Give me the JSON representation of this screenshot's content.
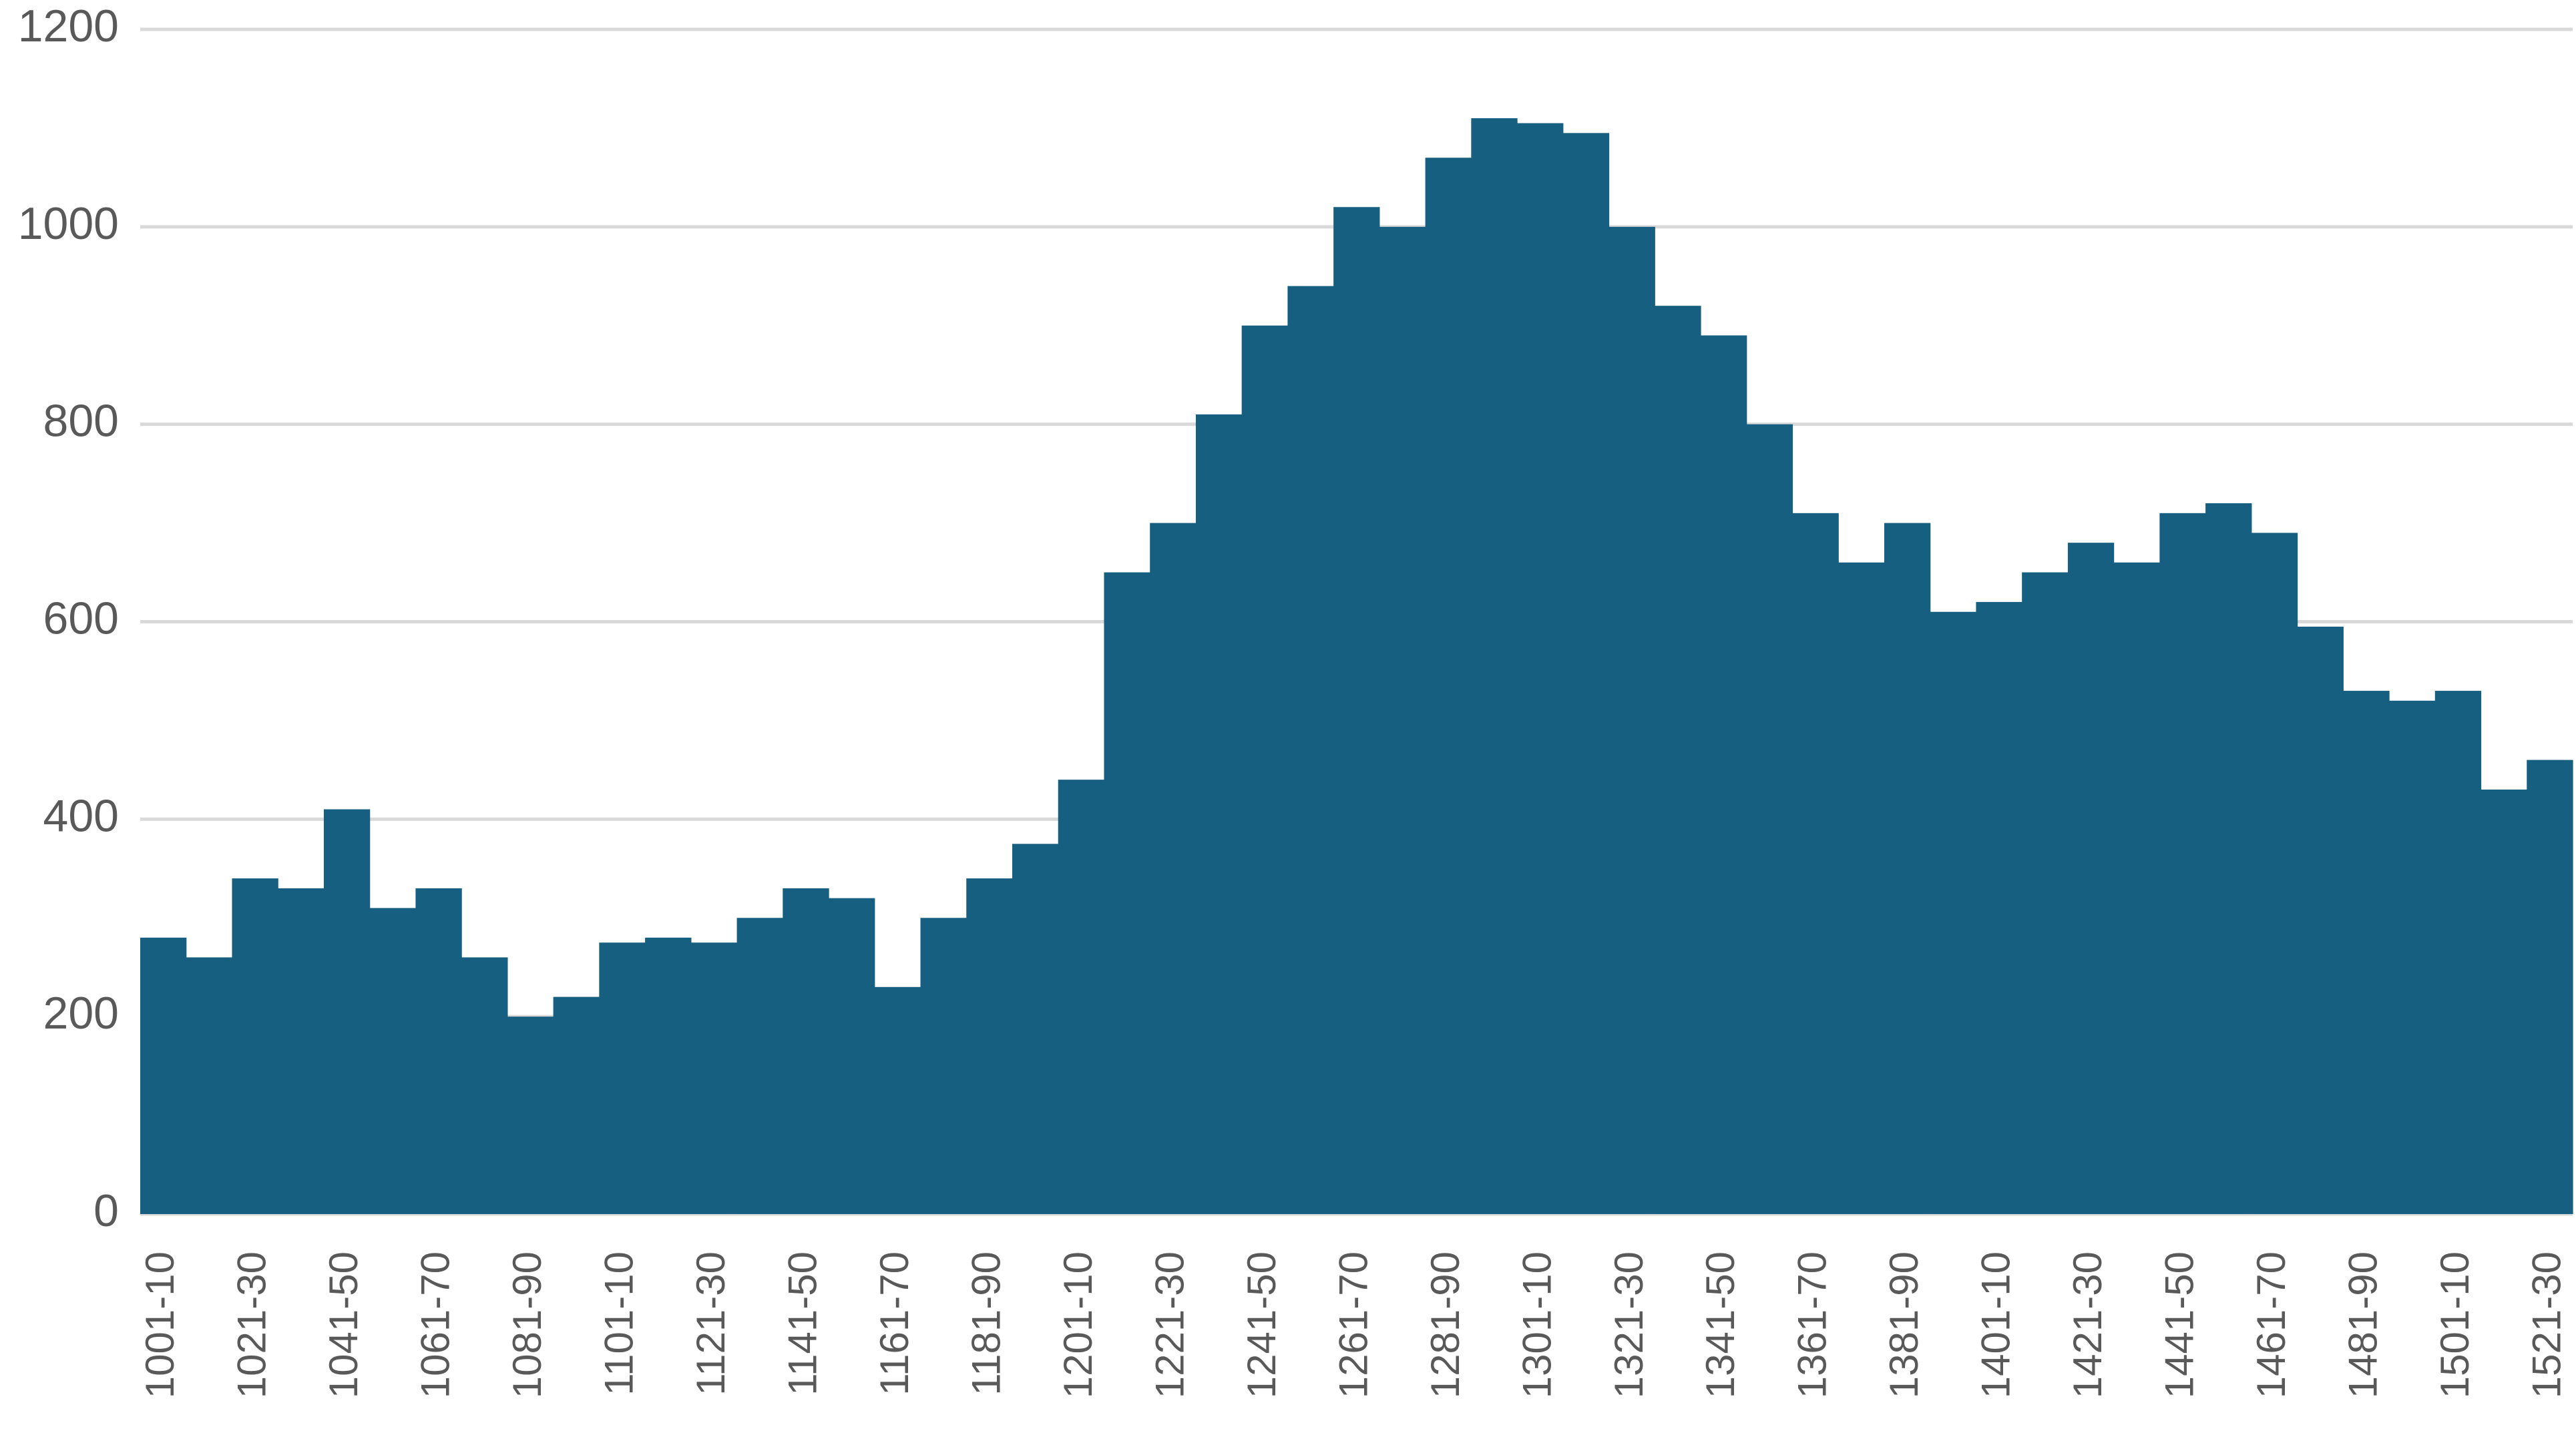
{
  "chart_data": {
    "type": "bar",
    "categories": [
      "1001-10",
      null,
      "1021-30",
      null,
      "1041-50",
      null,
      "1061-70",
      null,
      "1081-90",
      null,
      "1101-10",
      null,
      "1121-30",
      null,
      "1141-50",
      null,
      "1161-70",
      null,
      "1181-90",
      null,
      "1201-10",
      null,
      "1221-30",
      null,
      "1241-50",
      null,
      "1261-70",
      null,
      "1281-90",
      null,
      "1301-10",
      null,
      "1321-30",
      null,
      "1341-50",
      null,
      "1361-70",
      null,
      "1381-90",
      null,
      "1401-10",
      null,
      "1421-30",
      null,
      "1441-50",
      null,
      "1461-70",
      null,
      "1481-90",
      null,
      "1501-10",
      null,
      "1521-30"
    ],
    "values": [
      280,
      260,
      340,
      330,
      410,
      310,
      330,
      260,
      200,
      220,
      275,
      280,
      275,
      300,
      330,
      320,
      230,
      300,
      340,
      375,
      440,
      650,
      700,
      810,
      900,
      940,
      1020,
      1000,
      1070,
      1110,
      1105,
      1095,
      1000,
      920,
      890,
      800,
      710,
      660,
      700,
      610,
      620,
      650,
      680,
      660,
      710,
      720,
      690,
      595,
      530,
      520,
      530,
      430,
      460
    ],
    "color": "#175f80",
    "ylim": [
      0,
      1200
    ],
    "yticks": [
      0,
      200,
      400,
      600,
      800,
      1000,
      1200
    ],
    "grid": true
  }
}
